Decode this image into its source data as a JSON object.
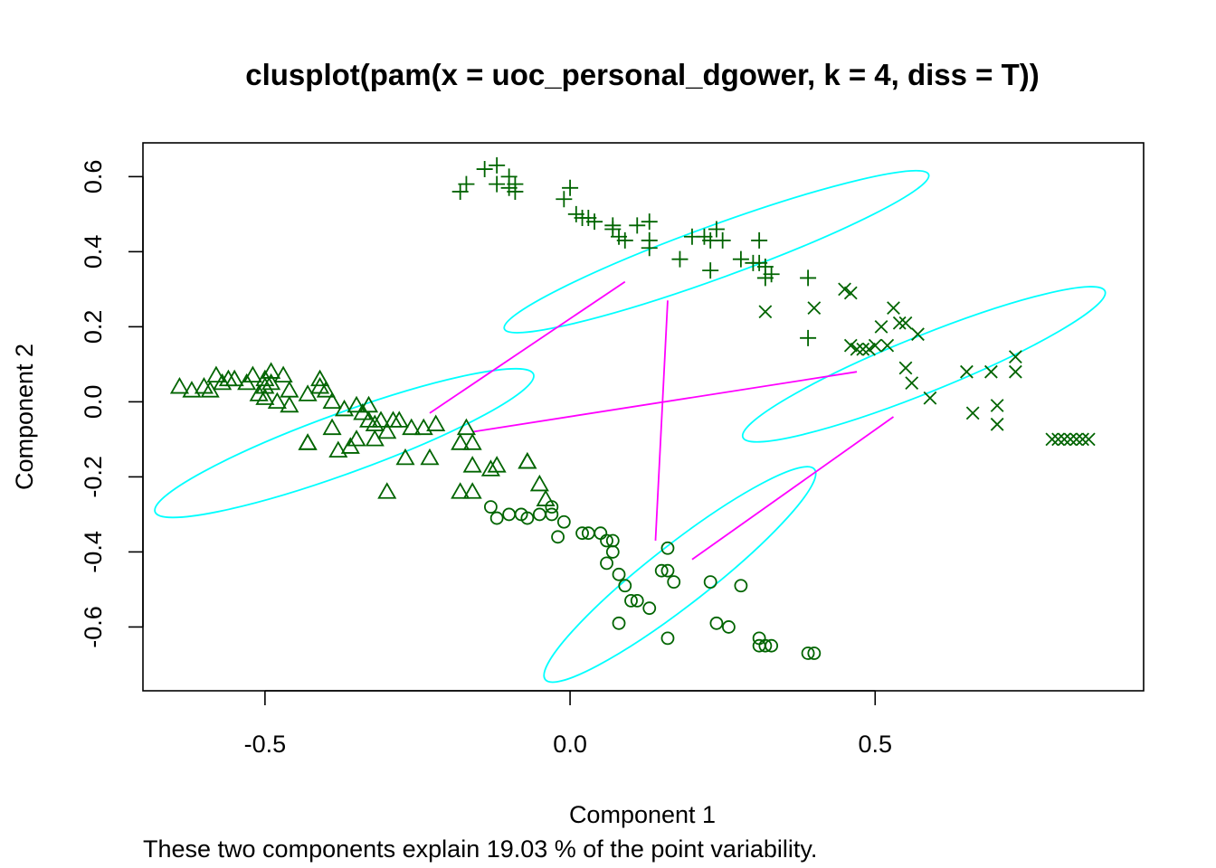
{
  "chart_data": {
    "type": "scatter",
    "title": "clusplot(pam(x = uoc_personal_dgower, k = 4, diss = T))",
    "xlabel": "Component 1",
    "ylabel": "Component 2",
    "subtitle": "These two components explain 19.03 % of the point variability.",
    "xlim": [
      -0.7,
      0.94
    ],
    "ylim": [
      -0.77,
      0.69
    ],
    "x_ticks": [
      -0.5,
      0.0,
      0.5
    ],
    "x_tick_labels": [
      "-0.5",
      "0.0",
      "0.5"
    ],
    "y_ticks": [
      -0.6,
      -0.4,
      -0.2,
      0.0,
      0.2,
      0.4,
      0.6
    ],
    "y_tick_labels": [
      "-0.6",
      "-0.4",
      "-0.2",
      "0.0",
      "0.2",
      "0.4",
      "0.6"
    ],
    "colors": {
      "points": "#006400",
      "ellipse": "#00FFFF",
      "lines": "#FF00FF"
    },
    "clusters": [
      {
        "marker": "circle",
        "ellipse": {
          "cx": 0.18,
          "cy": -0.46,
          "rx": 0.28,
          "ry": 0.08,
          "angle": -38
        },
        "points": [
          [
            -0.13,
            -0.28
          ],
          [
            -0.12,
            -0.31
          ],
          [
            -0.1,
            -0.3
          ],
          [
            -0.08,
            -0.3
          ],
          [
            -0.07,
            -0.31
          ],
          [
            -0.05,
            -0.3
          ],
          [
            -0.03,
            -0.3
          ],
          [
            -0.03,
            -0.28
          ],
          [
            -0.02,
            -0.36
          ],
          [
            -0.01,
            -0.32
          ],
          [
            0.02,
            -0.35
          ],
          [
            0.03,
            -0.35
          ],
          [
            0.05,
            -0.35
          ],
          [
            0.06,
            -0.37
          ],
          [
            0.07,
            -0.37
          ],
          [
            0.07,
            -0.4
          ],
          [
            0.06,
            -0.43
          ],
          [
            0.08,
            -0.46
          ],
          [
            0.09,
            -0.49
          ],
          [
            0.1,
            -0.53
          ],
          [
            0.11,
            -0.53
          ],
          [
            0.13,
            -0.55
          ],
          [
            0.08,
            -0.59
          ],
          [
            0.15,
            -0.45
          ],
          [
            0.16,
            -0.45
          ],
          [
            0.17,
            -0.48
          ],
          [
            0.16,
            -0.39
          ],
          [
            0.23,
            -0.48
          ],
          [
            0.28,
            -0.49
          ],
          [
            0.24,
            -0.59
          ],
          [
            0.26,
            -0.6
          ],
          [
            0.16,
            -0.63
          ],
          [
            0.31,
            -0.63
          ],
          [
            0.31,
            -0.65
          ],
          [
            0.32,
            -0.65
          ],
          [
            0.33,
            -0.65
          ],
          [
            0.39,
            -0.67
          ],
          [
            0.4,
            -0.67
          ]
        ]
      },
      {
        "marker": "triangle",
        "ellipse": {
          "cx": -0.37,
          "cy": -0.11,
          "rx": 0.33,
          "ry": 0.08,
          "angle": -20
        },
        "points": [
          [
            -0.64,
            0.04
          ],
          [
            -0.62,
            0.03
          ],
          [
            -0.6,
            0.04
          ],
          [
            -0.59,
            0.03
          ],
          [
            -0.58,
            0.07
          ],
          [
            -0.57,
            0.05
          ],
          [
            -0.56,
            0.06
          ],
          [
            -0.55,
            0.06
          ],
          [
            -0.53,
            0.05
          ],
          [
            -0.52,
            0.07
          ],
          [
            -0.51,
            0.02
          ],
          [
            -0.5,
            0.06
          ],
          [
            -0.49,
            0.08
          ],
          [
            -0.47,
            0.07
          ],
          [
            -0.5,
            0.04
          ],
          [
            -0.49,
            0.05
          ],
          [
            -0.5,
            0.01
          ],
          [
            -0.48,
            0.0
          ],
          [
            -0.46,
            0.03
          ],
          [
            -0.46,
            -0.01
          ],
          [
            -0.43,
            0.02
          ],
          [
            -0.41,
            0.04
          ],
          [
            -0.41,
            0.06
          ],
          [
            -0.4,
            0.03
          ],
          [
            -0.39,
            0.0
          ],
          [
            -0.37,
            -0.02
          ],
          [
            -0.35,
            -0.01
          ],
          [
            -0.34,
            -0.03
          ],
          [
            -0.33,
            -0.01
          ],
          [
            -0.33,
            -0.05
          ],
          [
            -0.32,
            -0.06
          ],
          [
            -0.31,
            -0.05
          ],
          [
            -0.29,
            -0.05
          ],
          [
            -0.28,
            -0.05
          ],
          [
            -0.26,
            -0.07
          ],
          [
            -0.24,
            -0.07
          ],
          [
            -0.22,
            -0.06
          ],
          [
            -0.3,
            -0.08
          ],
          [
            -0.32,
            -0.1
          ],
          [
            -0.35,
            -0.1
          ],
          [
            -0.36,
            -0.12
          ],
          [
            -0.38,
            -0.13
          ],
          [
            -0.39,
            -0.07
          ],
          [
            -0.43,
            -0.11
          ],
          [
            -0.43,
            -0.11
          ],
          [
            -0.27,
            -0.15
          ],
          [
            -0.23,
            -0.15
          ],
          [
            -0.18,
            -0.11
          ],
          [
            -0.17,
            -0.07
          ],
          [
            -0.16,
            -0.11
          ],
          [
            -0.16,
            -0.17
          ],
          [
            -0.13,
            -0.18
          ],
          [
            -0.12,
            -0.17
          ],
          [
            -0.07,
            -0.16
          ],
          [
            -0.07,
            -0.16
          ],
          [
            -0.18,
            -0.24
          ],
          [
            -0.16,
            -0.24
          ],
          [
            -0.05,
            -0.22
          ],
          [
            -0.04,
            -0.26
          ],
          [
            -0.3,
            -0.24
          ]
        ]
      },
      {
        "marker": "plus",
        "ellipse": {
          "cx": 0.24,
          "cy": 0.4,
          "rx": 0.37,
          "ry": 0.07,
          "angle": -20
        },
        "points": [
          [
            -0.18,
            0.56
          ],
          [
            -0.17,
            0.58
          ],
          [
            -0.14,
            0.62
          ],
          [
            -0.12,
            0.63
          ],
          [
            -0.12,
            0.58
          ],
          [
            -0.1,
            0.6
          ],
          [
            -0.1,
            0.57
          ],
          [
            -0.09,
            0.58
          ],
          [
            -0.09,
            0.56
          ],
          [
            -0.01,
            0.54
          ],
          [
            0.0,
            0.57
          ],
          [
            0.01,
            0.5
          ],
          [
            0.02,
            0.49
          ],
          [
            0.03,
            0.49
          ],
          [
            0.04,
            0.48
          ],
          [
            0.07,
            0.47
          ],
          [
            0.07,
            0.46
          ],
          [
            0.08,
            0.44
          ],
          [
            0.09,
            0.43
          ],
          [
            0.11,
            0.47
          ],
          [
            0.13,
            0.48
          ],
          [
            0.13,
            0.43
          ],
          [
            0.13,
            0.41
          ],
          [
            0.18,
            0.38
          ],
          [
            0.2,
            0.44
          ],
          [
            0.22,
            0.44
          ],
          [
            0.23,
            0.43
          ],
          [
            0.24,
            0.46
          ],
          [
            0.25,
            0.43
          ],
          [
            0.23,
            0.35
          ],
          [
            0.28,
            0.38
          ],
          [
            0.3,
            0.37
          ],
          [
            0.31,
            0.43
          ],
          [
            0.31,
            0.37
          ],
          [
            0.32,
            0.36
          ],
          [
            0.32,
            0.33
          ],
          [
            0.33,
            0.34
          ],
          [
            0.39,
            0.33
          ],
          [
            0.39,
            0.17
          ]
        ]
      },
      {
        "marker": "cross",
        "ellipse": {
          "cx": 0.58,
          "cy": 0.1,
          "rx": 0.32,
          "ry": 0.075,
          "angle": -22
        },
        "points": [
          [
            0.32,
            0.24
          ],
          [
            0.4,
            0.25
          ],
          [
            0.45,
            0.3
          ],
          [
            0.46,
            0.29
          ],
          [
            0.46,
            0.15
          ],
          [
            0.47,
            0.14
          ],
          [
            0.48,
            0.14
          ],
          [
            0.49,
            0.14
          ],
          [
            0.5,
            0.15
          ],
          [
            0.51,
            0.2
          ],
          [
            0.52,
            0.15
          ],
          [
            0.53,
            0.25
          ],
          [
            0.54,
            0.21
          ],
          [
            0.55,
            0.21
          ],
          [
            0.57,
            0.18
          ],
          [
            0.55,
            0.09
          ],
          [
            0.56,
            0.05
          ],
          [
            0.59,
            0.01
          ],
          [
            0.65,
            0.08
          ],
          [
            0.69,
            0.08
          ],
          [
            0.73,
            0.12
          ],
          [
            0.73,
            0.08
          ],
          [
            0.7,
            -0.01
          ],
          [
            0.66,
            -0.03
          ],
          [
            0.7,
            -0.06
          ],
          [
            0.79,
            -0.1
          ],
          [
            0.8,
            -0.1
          ],
          [
            0.81,
            -0.1
          ],
          [
            0.82,
            -0.1
          ],
          [
            0.83,
            -0.1
          ],
          [
            0.84,
            -0.1
          ],
          [
            0.85,
            -0.1
          ]
        ]
      }
    ],
    "connectors": [
      [
        [
          -0.23,
          -0.03
        ],
        [
          0.09,
          0.32
        ]
      ],
      [
        [
          -0.16,
          -0.08
        ],
        [
          0.47,
          0.08
        ]
      ],
      [
        [
          0.16,
          0.27
        ],
        [
          0.14,
          -0.37
        ]
      ],
      [
        [
          0.2,
          -0.42
        ],
        [
          0.53,
          -0.04
        ]
      ]
    ]
  }
}
